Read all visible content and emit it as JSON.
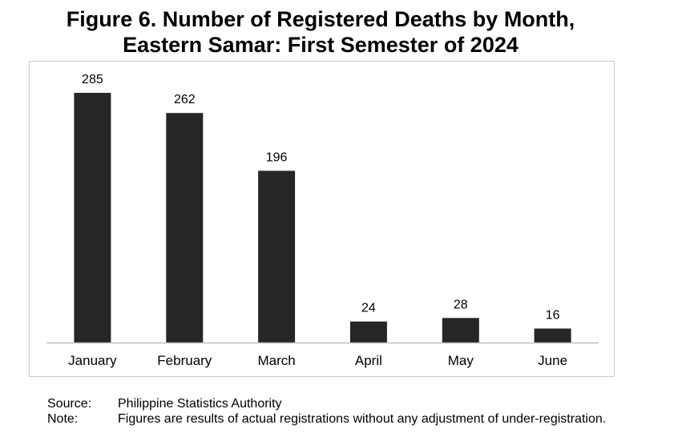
{
  "title_line1": "Figure 6. Number of Registered Deaths by Month,",
  "title_line2": "Eastern Samar: First Semester of 2024",
  "chart_data": {
    "type": "bar",
    "title": "Figure 6. Number of Registered Deaths by Month, Eastern Samar: First Semester of 2024",
    "categories": [
      "January",
      "February",
      "March",
      "April",
      "May",
      "June"
    ],
    "values": [
      285,
      262,
      196,
      24,
      28,
      16
    ],
    "xlabel": "",
    "ylabel": "",
    "ylim": [
      0,
      300
    ],
    "grid": false,
    "legend": "none",
    "bar_color": "#262626"
  },
  "footer": {
    "source_label": "Source:",
    "source_text": "Philippine Statistics Authority",
    "note_label": "Note:",
    "note_text": "Figures are results of actual registrations without any adjustment of under-registration."
  }
}
